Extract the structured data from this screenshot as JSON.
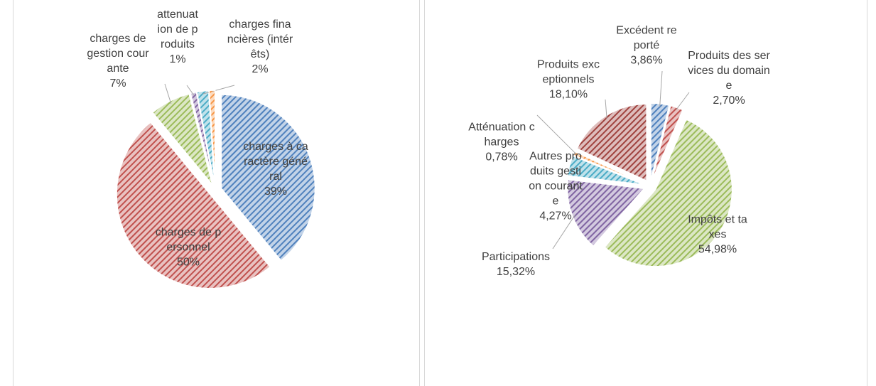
{
  "chart_data": [
    {
      "type": "pie",
      "categories": [
        "charges à caractère général",
        "charges de personnel",
        "charges de gestion courante",
        "attenuation de produits",
        "charges financières (intérêts)",
        null
      ],
      "values": [
        39,
        50,
        7,
        1,
        2,
        1
      ],
      "value_labels": [
        "39%",
        "50%",
        "7%",
        "1%",
        "2%",
        null
      ],
      "colors": [
        "#4f81bd",
        "#c0504d",
        "#9bbb59",
        "#8064a2",
        "#4bacc6",
        "#f79646"
      ]
    },
    {
      "type": "pie",
      "categories": [
        "Excédent reporté",
        "Produits des services du domaine",
        "Impôts et taxes",
        "Participations",
        "Autres produits gestion courante",
        "Atténuation charges",
        "Produits exceptionnels"
      ],
      "values": [
        3.86,
        2.7,
        54.98,
        15.32,
        4.27,
        0.78,
        18.1
      ],
      "value_labels": [
        "3,86%",
        "2,70%",
        "54,98%",
        "15,32%",
        "4,27%",
        "0,78%",
        "18,10%"
      ],
      "colors": [
        "#4f81bd",
        "#c0504d",
        "#9bbb59",
        "#8064a2",
        "#4bacc6",
        "#f79646",
        "#a0433f"
      ]
    }
  ]
}
